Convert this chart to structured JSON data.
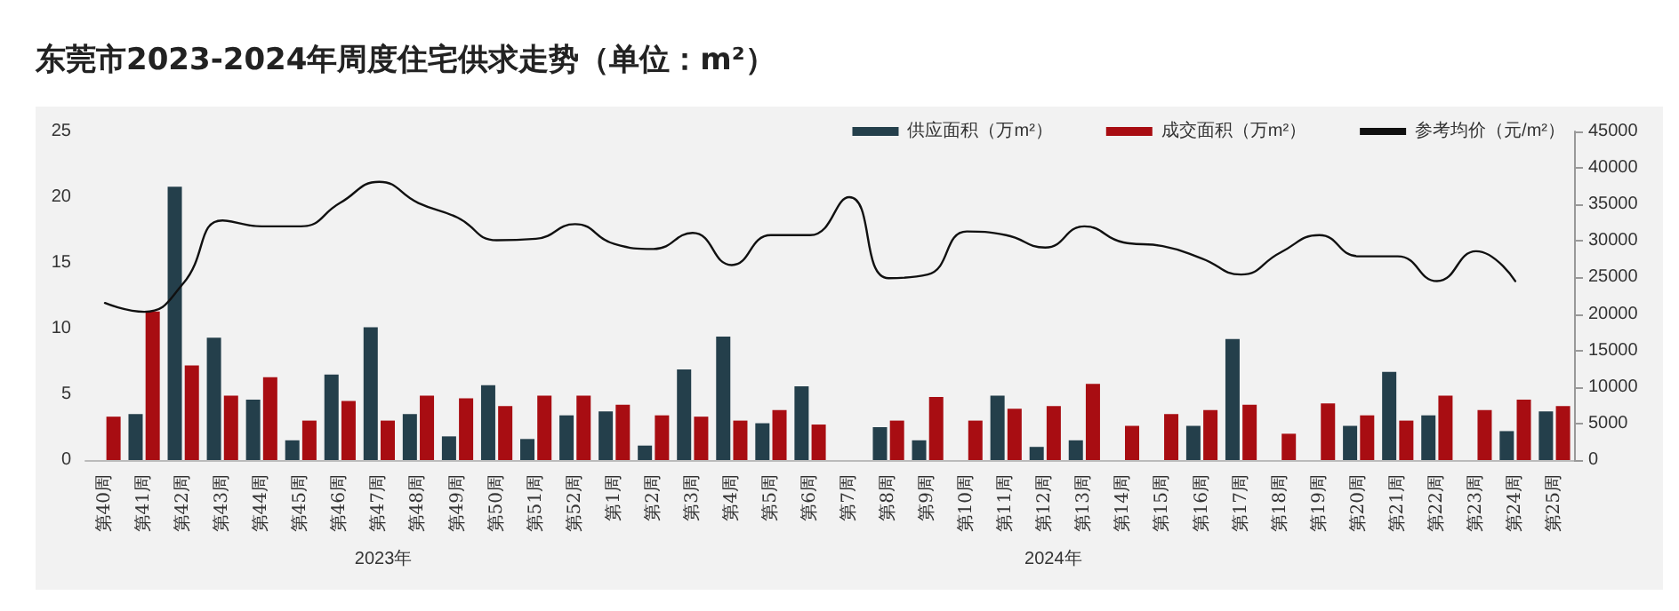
{
  "chart_data": {
    "type": "bar",
    "title": "东莞市2023-2024年周度住宅供求走势（单位：m²）",
    "categories": [
      "第40周",
      "第41周",
      "第42周",
      "第43周",
      "第44周",
      "第45周",
      "第46周",
      "第47周",
      "第48周",
      "第49周",
      "第50周",
      "第51周",
      "第52周",
      "第1周",
      "第2周",
      "第3周",
      "第4周",
      "第5周",
      "第6周",
      "第7周",
      "第8周",
      "第9周",
      "第10周",
      "第11周",
      "第12周",
      "第13周",
      "第14周",
      "第15周",
      "第16周",
      "第17周",
      "第18周",
      "第19周",
      "第20周",
      "第21周",
      "第22周",
      "第23周",
      "第24周",
      "第25周"
    ],
    "series": [
      {
        "name": "供应面积（万m²）",
        "color": "#243f4b",
        "values": [
          0,
          3.5,
          20.8,
          9.3,
          4.6,
          1.5,
          6.5,
          10.1,
          3.5,
          1.8,
          5.7,
          1.6,
          3.4,
          3.7,
          1.1,
          6.9,
          9.4,
          2.8,
          5.6,
          0,
          2.5,
          1.5,
          0,
          4.9,
          1.0,
          1.5,
          0,
          0,
          2.6,
          9.2,
          0,
          0,
          2.6,
          6.7,
          3.4,
          0,
          2.2,
          3.7
        ]
      },
      {
        "name": "成交面积（万m²）",
        "color": "#a80d12",
        "values": [
          3.3,
          11.3,
          7.2,
          4.9,
          6.3,
          3.0,
          4.5,
          3.0,
          4.9,
          4.7,
          4.1,
          4.9,
          4.9,
          4.2,
          3.4,
          3.3,
          3.0,
          3.8,
          2.7,
          0,
          3.0,
          4.8,
          3.0,
          3.9,
          4.1,
          5.8,
          2.6,
          3.5,
          3.8,
          4.2,
          2.0,
          4.3,
          3.4,
          3.0,
          4.9,
          3.8,
          4.6,
          4.1
        ]
      },
      {
        "name": "参考均价（元/m²）",
        "type": "line",
        "axis": "y2",
        "color": "#111111",
        "values": [
          21500,
          20300,
          24200,
          32800,
          32000,
          32000,
          35200,
          38100,
          35200,
          33200,
          30100,
          30300,
          32300,
          29600,
          28900,
          31100,
          26700,
          30800,
          30800,
          36000,
          24900,
          25400,
          31300,
          30800,
          29100,
          32000,
          29800,
          29300,
          27600,
          25400,
          28400,
          30800,
          27900,
          27900,
          24500,
          28600,
          24500,
          null
        ]
      }
    ],
    "ylim": [
      0,
      25
    ],
    "yticks": [
      0,
      5,
      10,
      15,
      20,
      25
    ],
    "y2lim": [
      0,
      45000
    ],
    "y2ticks": [
      0,
      5000,
      10000,
      15000,
      20000,
      25000,
      30000,
      35000,
      40000,
      45000
    ],
    "annotations": [
      "2023年",
      "2024年"
    ],
    "legend": "top right",
    "grid": false,
    "marker": "none",
    "line_style": "solid"
  }
}
